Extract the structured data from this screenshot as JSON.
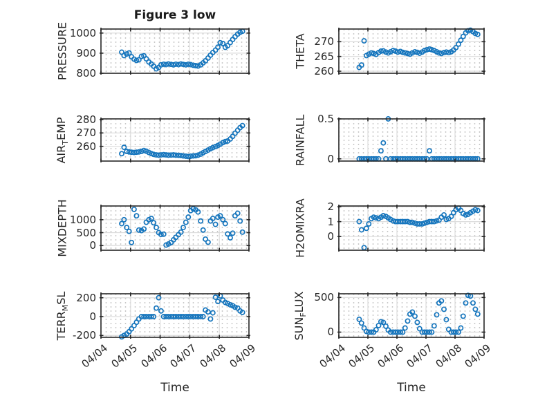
{
  "chart_data": {
    "type": "scatter",
    "title": "Figure 3 low",
    "xlabel": "Time",
    "marker": "open-circle",
    "grid": "major solid + minor dotted, box on",
    "xlim_days": [
      0,
      5
    ],
    "xtick_days": [
      0,
      1,
      2,
      3,
      4,
      5
    ],
    "xticklabels": [
      "04/04",
      "04/05",
      "04/06",
      "04/07",
      "04/08",
      "04/09"
    ],
    "x": [
      0.7,
      0.78,
      0.87,
      0.95,
      1.03,
      1.12,
      1.2,
      1.28,
      1.37,
      1.45,
      1.53,
      1.62,
      1.7,
      1.78,
      1.87,
      1.95,
      2.03,
      2.12,
      2.2,
      2.28,
      2.37,
      2.45,
      2.53,
      2.62,
      2.7,
      2.78,
      2.87,
      2.95,
      3.03,
      3.12,
      3.2,
      3.28,
      3.37,
      3.45,
      3.53,
      3.62,
      3.7,
      3.78,
      3.87,
      3.95,
      4.03,
      4.12,
      4.2,
      4.28,
      4.37,
      4.45,
      4.53,
      4.62,
      4.7,
      4.78
    ],
    "panels": [
      {
        "id": "pressure",
        "slot": "L1",
        "ylabel_pre": "PRESSURE",
        "ylabel_sub": "",
        "ylabel_post": "",
        "ylim": [
          800,
          1020
        ],
        "yticks": [
          800,
          900,
          1000
        ],
        "yticklabels": [
          "800",
          "900",
          "1000"
        ],
        "show_xtick_labels": false,
        "values": [
          905,
          888,
          896,
          901,
          882,
          870,
          864,
          867,
          884,
          887,
          872,
          856,
          846,
          835,
          822,
          829,
          842,
          845,
          843,
          846,
          844,
          842,
          845,
          843,
          846,
          844,
          842,
          845,
          843,
          840,
          838,
          836,
          842,
          852,
          862,
          876,
          890,
          903,
          915,
          930,
          952,
          948,
          929,
          937,
          953,
          968,
          982,
          995,
          1004,
          1009
        ]
      },
      {
        "id": "theta",
        "slot": "R1",
        "ylabel_pre": "THETA",
        "ylabel_sub": "",
        "ylabel_post": "",
        "ylim": [
          259.3,
          274.3
        ],
        "yticks": [
          260,
          265,
          270
        ],
        "yticklabels": [
          "260",
          "265",
          "270"
        ],
        "show_xtick_labels": false,
        "values": [
          261.3,
          262.1,
          270.3,
          265.3,
          265.8,
          266.2,
          266.0,
          265.7,
          266.3,
          266.8,
          266.9,
          266.5,
          266.2,
          266.6,
          267.0,
          266.8,
          266.5,
          266.7,
          266.4,
          266.2,
          266.0,
          265.8,
          266.2,
          266.6,
          266.4,
          266.1,
          266.5,
          267.0,
          267.3,
          267.5,
          267.3,
          267.0,
          266.6,
          266.2,
          266.0,
          266.3,
          266.5,
          266.3,
          266.6,
          267.2,
          268.0,
          269.2,
          270.5,
          271.8,
          273.0,
          273.7,
          273.9,
          273.4,
          272.8,
          272.5
        ]
      },
      {
        "id": "air-temp",
        "slot": "L2",
        "ylabel_pre": "AIR",
        "ylabel_sub": "T",
        "ylabel_post": "EMP",
        "ylim": [
          249,
          280.5
        ],
        "yticks": [
          260,
          270,
          280
        ],
        "yticklabels": [
          "260",
          "270",
          "280"
        ],
        "show_xtick_labels": false,
        "values": [
          254.5,
          259.3,
          256.2,
          255.8,
          255.6,
          255.4,
          255.6,
          255.8,
          256.2,
          256.9,
          256.4,
          255.4,
          254.6,
          254.0,
          253.6,
          253.4,
          253.6,
          253.8,
          253.6,
          253.4,
          253.5,
          253.6,
          253.4,
          253.3,
          253.2,
          252.8,
          252.6,
          252.4,
          252.6,
          252.8,
          253.0,
          253.4,
          254.2,
          255.2,
          256.2,
          257.2,
          258.2,
          259.0,
          259.8,
          260.6,
          261.6,
          262.8,
          263.6,
          264.0,
          265.5,
          267.5,
          269.8,
          272.0,
          274.0,
          275.5
        ]
      },
      {
        "id": "rainfall",
        "slot": "R2",
        "ylabel_pre": "RAINFALL",
        "ylabel_sub": "",
        "ylabel_post": "",
        "ylim": [
          -0.028,
          0.5
        ],
        "yticks": [
          0,
          0.5
        ],
        "yticklabels": [
          "0",
          "0.5"
        ],
        "show_xtick_labels": false,
        "values": [
          0,
          0,
          0,
          0,
          0,
          0,
          0,
          0,
          0,
          0.1,
          0.2,
          0,
          0.5,
          0,
          0,
          0,
          0,
          0,
          0,
          0,
          0,
          0,
          0,
          0,
          0,
          0,
          0,
          0,
          0,
          0.1,
          0,
          0,
          0,
          0,
          0,
          0,
          0,
          0,
          0,
          0,
          0,
          0,
          0,
          0,
          0,
          0,
          0,
          0,
          0,
          0
        ]
      },
      {
        "id": "mixdepth",
        "slot": "L3",
        "ylabel_pre": "MIXDEPTH",
        "ylabel_sub": "",
        "ylabel_post": "",
        "ylim": [
          -180,
          1530
        ],
        "yticks": [
          0,
          500,
          1000
        ],
        "yticklabels": [
          "0",
          "500",
          "1000"
        ],
        "show_xtick_labels": false,
        "values": [
          850,
          1000,
          700,
          550,
          120,
          1400,
          1150,
          600,
          580,
          640,
          900,
          1000,
          1050,
          880,
          700,
          500,
          430,
          440,
          20,
          60,
          120,
          220,
          320,
          420,
          520,
          700,
          900,
          1100,
          1350,
          1420,
          1380,
          1300,
          950,
          600,
          250,
          130,
          950,
          1050,
          820,
          1100,
          1150,
          1000,
          850,
          450,
          300,
          480,
          1150,
          1250,
          950,
          520
        ]
      },
      {
        "id": "h2omixra",
        "slot": "R3",
        "ylabel_pre": "H2OMIXRA",
        "ylabel_sub": "",
        "ylabel_post": "",
        "ylim": [
          -0.92,
          2.05
        ],
        "yticks": [
          0,
          1,
          2
        ],
        "yticklabels": [
          "0",
          "1",
          "2"
        ],
        "show_xtick_labels": false,
        "values": [
          1.0,
          0.45,
          -0.75,
          0.55,
          0.85,
          1.2,
          1.3,
          1.25,
          1.2,
          1.3,
          1.4,
          1.35,
          1.25,
          1.15,
          1.05,
          1.0,
          1.0,
          1.0,
          1.0,
          1.0,
          1.0,
          0.95,
          0.95,
          0.9,
          0.85,
          0.85,
          0.85,
          0.9,
          0.95,
          1.0,
          1.0,
          1.0,
          1.05,
          1.1,
          1.3,
          1.45,
          1.15,
          1.2,
          1.35,
          1.6,
          1.8,
          1.9,
          1.75,
          1.55,
          1.45,
          1.5,
          1.6,
          1.7,
          1.8,
          1.75
        ]
      },
      {
        "id": "terr-msl",
        "slot": "L4",
        "ylabel_pre": "TERR",
        "ylabel_sub": "M",
        "ylabel_post": "SL",
        "ylim": [
          -220,
          242
        ],
        "yticks": [
          -200,
          0,
          200
        ],
        "yticklabels": [
          "-200",
          "0",
          "200"
        ],
        "show_xtick_labels": true,
        "values": [
          -215,
          -200,
          -185,
          -160,
          -130,
          -95,
          -60,
          -25,
          0,
          0,
          0,
          0,
          0,
          0,
          90,
          200,
          60,
          0,
          0,
          0,
          0,
          0,
          0,
          0,
          0,
          0,
          0,
          0,
          0,
          0,
          0,
          0,
          0,
          0,
          70,
          50,
          -25,
          40,
          205,
          160,
          220,
          175,
          150,
          140,
          125,
          115,
          100,
          90,
          60,
          45
        ]
      },
      {
        "id": "sun-flux",
        "slot": "R4",
        "ylabel_pre": "SUN",
        "ylabel_sub": "F",
        "ylabel_post": "LUX",
        "ylim": [
          -75,
          553
        ],
        "yticks": [
          0,
          500
        ],
        "yticklabels": [
          "0",
          "500"
        ],
        "show_xtick_labels": true,
        "values": [
          185,
          130,
          60,
          10,
          0,
          0,
          0,
          35,
          95,
          150,
          140,
          85,
          30,
          0,
          0,
          0,
          0,
          0,
          0,
          60,
          160,
          260,
          290,
          230,
          140,
          50,
          0,
          0,
          0,
          0,
          0,
          90,
          250,
          420,
          450,
          330,
          180,
          40,
          0,
          0,
          0,
          0,
          60,
          230,
          420,
          530,
          520,
          420,
          330,
          260
        ]
      }
    ]
  },
  "colors": {
    "marker": "#1575bd",
    "axis": "#262626",
    "major_grid": "#dcdcdc",
    "minor_grid_dot": "#c8c8c8",
    "text": "#262626",
    "title": "#1a1a1a"
  }
}
